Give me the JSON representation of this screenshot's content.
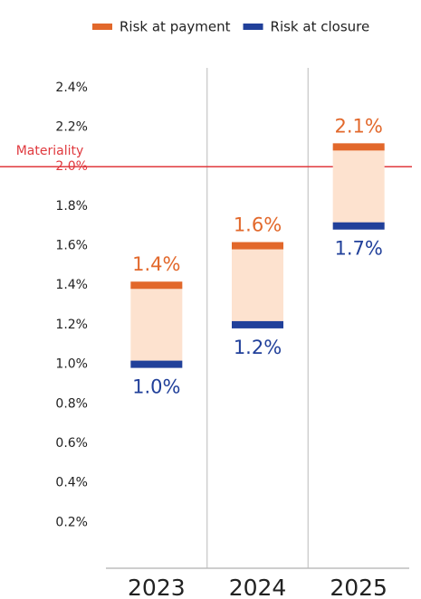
{
  "chart_data": {
    "type": "range",
    "categories": [
      "2023",
      "2024",
      "2025"
    ],
    "series": [
      {
        "name": "Risk at payment",
        "color": "#e2682b",
        "values": [
          1.4,
          1.6,
          2.1
        ],
        "value_labels": [
          "1.4%",
          "1.6%",
          "2.1%"
        ]
      },
      {
        "name": "Risk at closure",
        "color": "#21409a",
        "values": [
          1.0,
          1.2,
          1.7
        ],
        "value_labels": [
          "1.0%",
          "1.2%",
          "1.7%"
        ]
      }
    ],
    "range_color": "#fde2cf",
    "ylim": [
      0,
      2.5
    ],
    "yticks": [
      {
        "value": 0.2,
        "label": "0.2%"
      },
      {
        "value": 0.4,
        "label": "0.4%"
      },
      {
        "value": 0.6,
        "label": "0.6%"
      },
      {
        "value": 0.8,
        "label": "0.8%"
      },
      {
        "value": 1.0,
        "label": "1.0%"
      },
      {
        "value": 1.2,
        "label": "1.2%"
      },
      {
        "value": 1.4,
        "label": "1.4%"
      },
      {
        "value": 1.6,
        "label": "1.6%"
      },
      {
        "value": 1.8,
        "label": "1.8%"
      },
      {
        "value": 2.0,
        "label": "2.0%"
      },
      {
        "value": 2.2,
        "label": "2.2%"
      },
      {
        "value": 2.4,
        "label": "2.4%"
      }
    ],
    "threshold": {
      "value": 2.0,
      "label": "Materiality",
      "color": "#e0393e"
    },
    "legend": "top"
  }
}
